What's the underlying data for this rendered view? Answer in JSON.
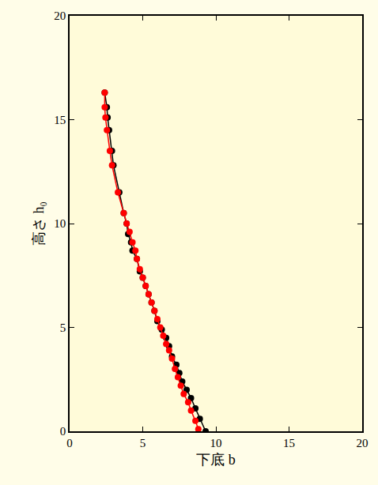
{
  "chart_data": {
    "type": "line",
    "x_label": "下底 b",
    "y_label": "高さ h₀",
    "xlim": [
      0,
      20
    ],
    "xticks": [
      0,
      5,
      10,
      15,
      20
    ],
    "ylim": [
      0,
      20
    ],
    "yticks": [
      0,
      5,
      10,
      15,
      20
    ],
    "grid": false,
    "marker": "circle",
    "series": [
      {
        "color": "#000000",
        "x": [
          2.4,
          2.55,
          2.6,
          2.7,
          2.9,
          3.0,
          3.4,
          3.7,
          3.9,
          4.0,
          4.2,
          4.3,
          4.6,
          4.8,
          5.0,
          5.2,
          5.4,
          5.6,
          5.8,
          6.0,
          6.3,
          6.6,
          6.8,
          7.0,
          7.3,
          7.5,
          7.7,
          8.0,
          8.3,
          8.6,
          8.9,
          9.3
        ],
        "values": [
          16.3,
          15.6,
          15.1,
          14.5,
          13.5,
          12.8,
          11.5,
          10.5,
          10.0,
          9.5,
          9.1,
          8.7,
          8.3,
          7.7,
          7.4,
          7.0,
          6.6,
          6.2,
          5.8,
          5.3,
          4.9,
          4.5,
          4.1,
          3.6,
          3.2,
          2.8,
          2.4,
          2.0,
          1.6,
          1.1,
          0.6,
          0.0
        ]
      },
      {
        "color": "#ff0000",
        "x": [
          2.4,
          2.4,
          2.45,
          2.55,
          2.75,
          2.9,
          3.3,
          3.7,
          3.9,
          4.1,
          4.3,
          4.5,
          4.6,
          4.8,
          5.0,
          5.2,
          5.4,
          5.6,
          5.8,
          6.0,
          6.2,
          6.4,
          6.6,
          6.8,
          7.0,
          7.2,
          7.4,
          7.6,
          7.8,
          8.1,
          8.3,
          8.6,
          8.8
        ],
        "values": [
          16.3,
          15.6,
          15.1,
          14.5,
          13.5,
          12.8,
          11.5,
          10.5,
          10.0,
          9.6,
          9.1,
          8.7,
          8.3,
          7.8,
          7.4,
          7.0,
          6.6,
          6.2,
          5.8,
          5.4,
          5.0,
          4.6,
          4.2,
          3.9,
          3.5,
          3.0,
          2.6,
          2.2,
          1.8,
          1.4,
          1.0,
          0.5,
          0.1
        ]
      }
    ]
  }
}
